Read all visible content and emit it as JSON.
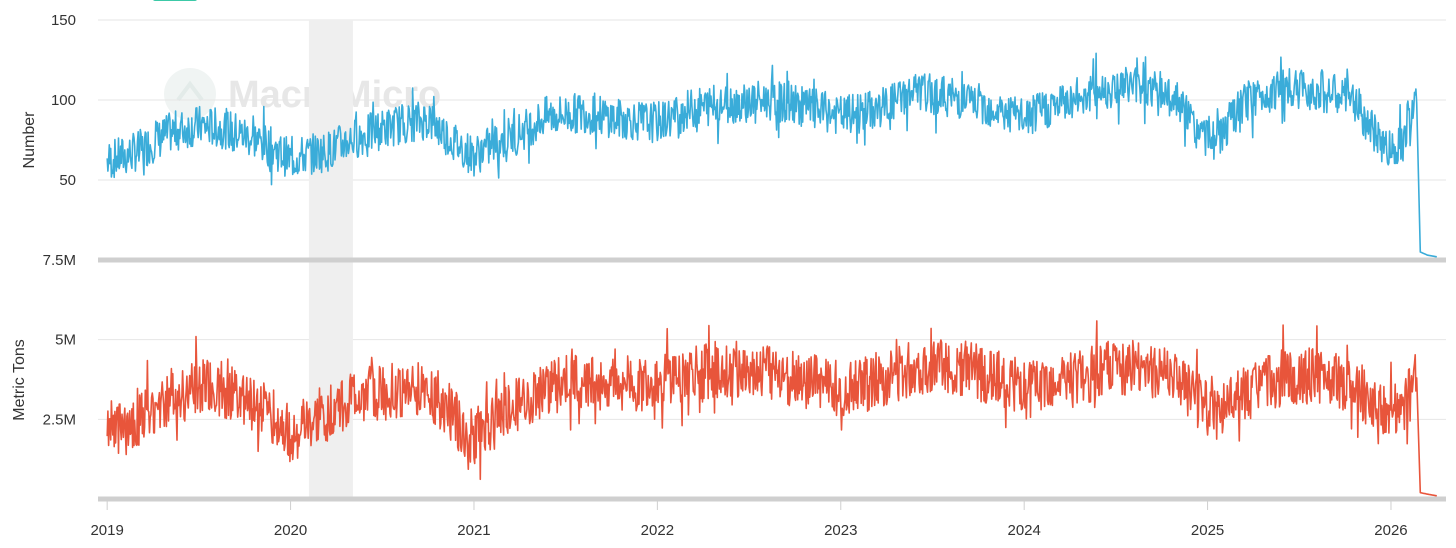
{
  "colors": {
    "series_top": "#3aacd9",
    "series_bottom": "#e8553b",
    "recession_band": "#efefef",
    "gridline": "#e6e6e6",
    "axis_bar": "#cfcfcf",
    "legend_swatch": "#3cc9a7"
  },
  "watermark": {
    "text": "MacroMicro",
    "icon": "macromicro-logo-icon"
  },
  "chart_data": [
    {
      "type": "line",
      "panel": "top",
      "ylabel": "Number",
      "ylim": [
        0,
        150
      ],
      "yticks": [
        {
          "value": 50,
          "label": "50"
        },
        {
          "value": 100,
          "label": "100"
        },
        {
          "value": 150,
          "label": "150"
        }
      ],
      "series": [
        {
          "color": "#3aacd9",
          "x": [
            2019.0,
            2019.1,
            2019.2,
            2019.35,
            2019.5,
            2019.65,
            2019.8,
            2019.9,
            2020.0,
            2020.1,
            2020.2,
            2020.3,
            2020.45,
            2020.6,
            2020.75,
            2020.9,
            2021.0,
            2021.1,
            2021.25,
            2021.4,
            2021.6,
            2021.8,
            2022.0,
            2022.2,
            2022.4,
            2022.6,
            2022.8,
            2023.0,
            2023.2,
            2023.4,
            2023.6,
            2023.8,
            2024.0,
            2024.2,
            2024.4,
            2024.6,
            2024.8,
            2024.95,
            2025.05,
            2025.2,
            2025.4,
            2025.6,
            2025.8,
            2025.9,
            2026.0,
            2026.1,
            2026.14,
            2026.16,
            2026.2,
            2026.25
          ],
          "values": [
            62,
            65,
            70,
            80,
            84,
            82,
            76,
            70,
            63,
            66,
            68,
            74,
            80,
            85,
            88,
            73,
            65,
            72,
            80,
            90,
            92,
            88,
            86,
            95,
            98,
            100,
            96,
            90,
            94,
            105,
            102,
            96,
            88,
            98,
            106,
            110,
            104,
            80,
            75,
            98,
            108,
            106,
            100,
            80,
            68,
            82,
            98,
            5,
            3,
            2
          ]
        }
      ]
    },
    {
      "type": "line",
      "panel": "bottom",
      "ylabel": "Metric Tons",
      "ylim": [
        0,
        7500000
      ],
      "yticks": [
        {
          "value": 2500000,
          "label": "2.5M"
        },
        {
          "value": 5000000,
          "label": "5M"
        },
        {
          "value": 7500000,
          "label": "7.5M"
        }
      ],
      "series": [
        {
          "color": "#e8553b",
          "x": [
            2019.0,
            2019.1,
            2019.2,
            2019.35,
            2019.5,
            2019.65,
            2019.8,
            2019.9,
            2020.0,
            2020.1,
            2020.2,
            2020.3,
            2020.45,
            2020.6,
            2020.75,
            2020.9,
            2021.0,
            2021.1,
            2021.25,
            2021.4,
            2021.6,
            2021.8,
            2022.0,
            2022.2,
            2022.4,
            2022.6,
            2022.8,
            2023.0,
            2023.2,
            2023.4,
            2023.6,
            2023.8,
            2024.0,
            2024.2,
            2024.4,
            2024.6,
            2024.8,
            2024.95,
            2025.05,
            2025.2,
            2025.4,
            2025.6,
            2025.8,
            2025.9,
            2026.0,
            2026.1,
            2026.14,
            2026.16,
            2026.2,
            2026.25
          ],
          "values": [
            2300000,
            2200000,
            2600000,
            3200000,
            3500000,
            3400000,
            3100000,
            2600000,
            2000000,
            2200000,
            2600000,
            3100000,
            3300000,
            3400000,
            3500000,
            2500000,
            1900000,
            2400000,
            3000000,
            3500000,
            3700000,
            3600000,
            3600000,
            3900000,
            4100000,
            4000000,
            3700000,
            3500000,
            3700000,
            4100000,
            4200000,
            3900000,
            3400000,
            3600000,
            4000000,
            4200000,
            3900000,
            3100000,
            2700000,
            3300000,
            3800000,
            3900000,
            3600000,
            3000000,
            2700000,
            3200000,
            3800000,
            200000,
            150000,
            100000
          ]
        }
      ]
    }
  ],
  "shared_x": {
    "xlim": [
      2018.95,
      2026.3
    ],
    "ticks": [
      {
        "value": 2019,
        "label": "2019"
      },
      {
        "value": 2020,
        "label": "2020"
      },
      {
        "value": 2021,
        "label": "2021"
      },
      {
        "value": 2022,
        "label": "2022"
      },
      {
        "value": 2023,
        "label": "2023"
      },
      {
        "value": 2024,
        "label": "2024"
      },
      {
        "value": 2025,
        "label": "2025"
      },
      {
        "value": 2026,
        "label": "2026"
      }
    ]
  },
  "recession_band": {
    "from": 2020.1,
    "to": 2020.34
  }
}
